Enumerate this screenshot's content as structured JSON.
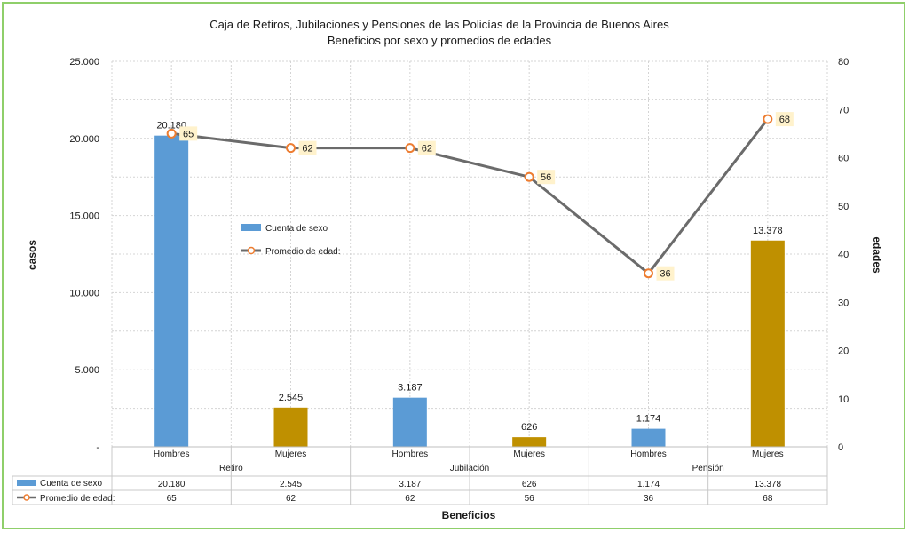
{
  "chart_data": {
    "type": "bar",
    "title": "Caja de Retiros, Jubilaciones y Pensiones de las Policías de la Provincia de Buenos Aires",
    "subtitle": "Beneficios por sexo y promedios  de edades",
    "xlabel": "Beneficios",
    "ylabel": "casos",
    "y2label": "edades",
    "groups": [
      "Retiro",
      "Jubilación",
      "Pensión"
    ],
    "categories": [
      "Hombres",
      "Mujeres",
      "Hombres",
      "Mujeres",
      "Hombres",
      "Mujeres"
    ],
    "ylim": [
      0,
      25000
    ],
    "y2lim": [
      0,
      80
    ],
    "yticks": [
      "-",
      "5.000",
      "10.000",
      "15.000",
      "20.000",
      "25.000"
    ],
    "y2ticks": [
      "0",
      "10",
      "20",
      "30",
      "40",
      "50",
      "60",
      "70",
      "80"
    ],
    "grid": true,
    "legend_position": "center-left",
    "series": [
      {
        "name": "Cuenta de sexo",
        "type": "bar",
        "axis": "left",
        "values": [
          20180,
          2545,
          3187,
          626,
          1174,
          13378
        ],
        "labels": [
          "20.180",
          "2.545",
          "3.187",
          "626",
          "1.174",
          "13.378"
        ]
      },
      {
        "name": "Promedio de edad:",
        "type": "line",
        "axis": "right",
        "values": [
          65,
          62,
          62,
          56,
          36,
          68
        ],
        "labels": [
          "65",
          "62",
          "62",
          "56",
          "36",
          "68"
        ]
      }
    ],
    "colors": {
      "bar_hombres": "#5b9bd5",
      "bar_mujeres": "#bf9000",
      "line": "#6b6b6b",
      "marker_stroke": "#ed7d31",
      "marker_fill": "#ffffff",
      "label_bg": "#fff2cc"
    }
  }
}
